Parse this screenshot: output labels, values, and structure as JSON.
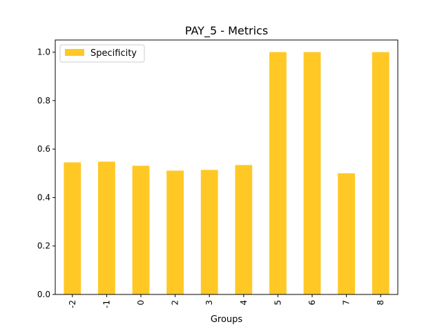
{
  "chart_data": {
    "type": "bar",
    "title": "PAY_5 - Metrics",
    "xlabel": "Groups",
    "ylabel": "",
    "categories": [
      "-2",
      "-1",
      "0",
      "2",
      "3",
      "4",
      "5",
      "6",
      "7",
      "8"
    ],
    "series": [
      {
        "name": "Specificity",
        "color": "#FFC825",
        "values": [
          0.545,
          0.548,
          0.531,
          0.511,
          0.514,
          0.534,
          1.0,
          1.0,
          0.5,
          1.0
        ]
      }
    ],
    "ylim": [
      0,
      1.05
    ],
    "yticks": [
      "0.0",
      "0.2",
      "0.4",
      "0.6",
      "0.8",
      "1.0"
    ],
    "grid": false,
    "legend_placement": "upper-left"
  }
}
